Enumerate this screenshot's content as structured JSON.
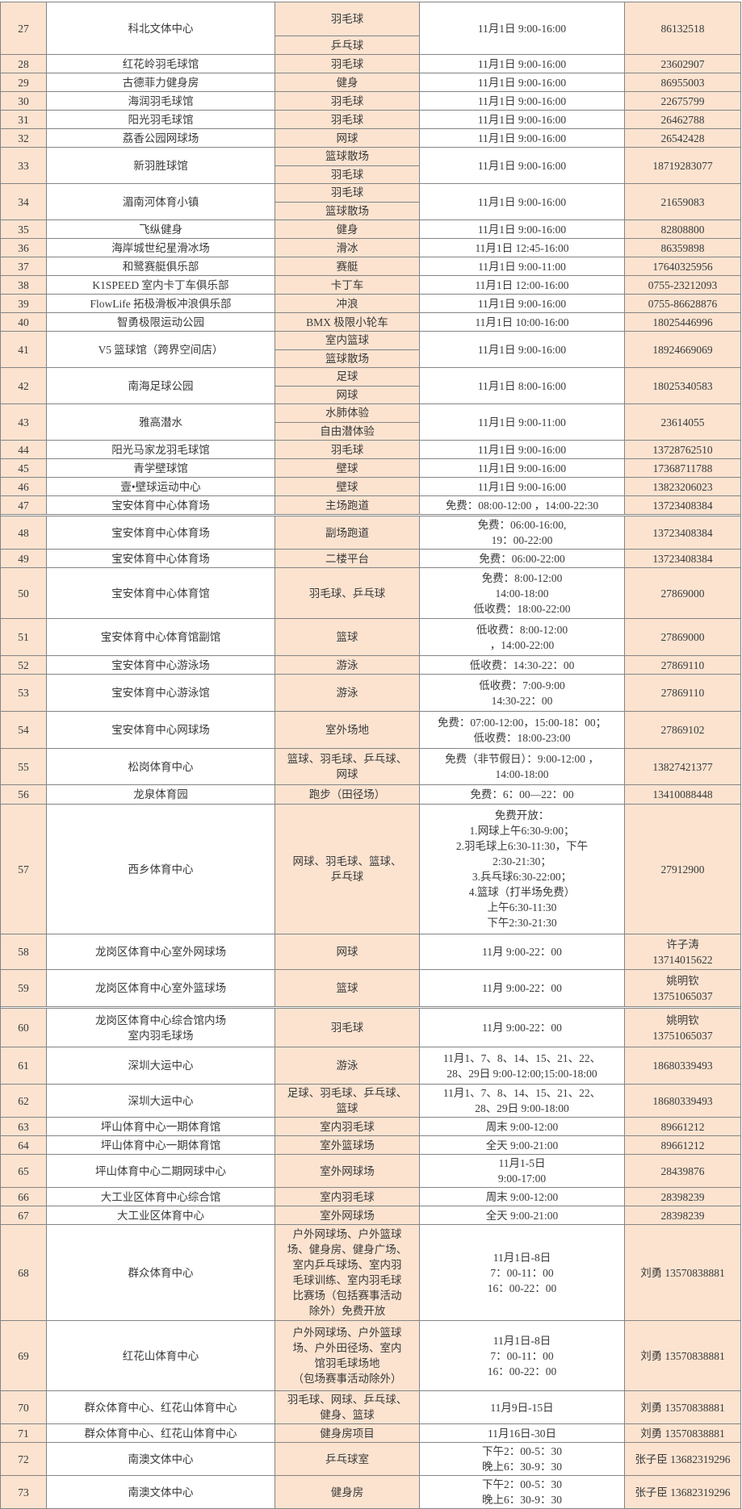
{
  "colors": {
    "cell_peach": "#fbe3d0",
    "cell_white": "#ffffff",
    "border": "#848484",
    "text": "#3a3a3a"
  },
  "rows": [
    {
      "no": "27",
      "name": "科北文体中心",
      "sports": [
        "羽毛球",
        "乒乓球"
      ],
      "time": [
        "11月1日 9:00-16:00"
      ],
      "phone": [
        "86132518"
      ]
    },
    {
      "no": "28",
      "name": "红花岭羽毛球馆",
      "sports": [
        "羽毛球"
      ],
      "time": [
        "11月1日 9:00-16:00"
      ],
      "phone": [
        "23602907"
      ]
    },
    {
      "no": "29",
      "name": "古德菲力健身房",
      "sports": [
        "健身"
      ],
      "time": [
        "11月1日 9:00-16:00"
      ],
      "phone": [
        "86955003"
      ]
    },
    {
      "no": "30",
      "name": "海润羽毛球馆",
      "sports": [
        "羽毛球"
      ],
      "time": [
        "11月1日 9:00-16:00"
      ],
      "phone": [
        "22675799"
      ]
    },
    {
      "no": "31",
      "name": "阳光羽毛球馆",
      "sports": [
        "羽毛球"
      ],
      "time": [
        "11月1日 9:00-16:00"
      ],
      "phone": [
        "26462788"
      ]
    },
    {
      "no": "32",
      "name": "荔香公园网球场",
      "sports": [
        "网球"
      ],
      "time": [
        "11月1日 9:00-16:00"
      ],
      "phone": [
        "26542428"
      ]
    },
    {
      "no": "33",
      "name": "新羽胜球馆",
      "sports": [
        "篮球散场",
        "羽毛球"
      ],
      "time": [
        "11月1日 9:00-16:00"
      ],
      "phone": [
        "18719283077"
      ]
    },
    {
      "no": "34",
      "name": "湄南河体育小镇",
      "sports": [
        "羽毛球",
        "篮球散场"
      ],
      "time": [
        "11月1日 9:00-16:00"
      ],
      "phone": [
        "21659083"
      ]
    },
    {
      "no": "35",
      "name": "飞纵健身",
      "sports": [
        "健身"
      ],
      "time": [
        "11月1日 9:00-16:00"
      ],
      "phone": [
        "82808800"
      ]
    },
    {
      "no": "36",
      "name": "海岸城世纪星滑冰场",
      "sports": [
        "滑冰"
      ],
      "time": [
        "11月1日 12:45-16:00"
      ],
      "phone": [
        "86359898"
      ]
    },
    {
      "no": "37",
      "name": "和鹭赛艇俱乐部",
      "sports": [
        "赛艇"
      ],
      "time": [
        "11月1日 9:00-11:00"
      ],
      "phone": [
        "17640325956"
      ]
    },
    {
      "no": "38",
      "name": "K1SPEED 室内卡丁车俱乐部",
      "sports": [
        "卡丁车"
      ],
      "time": [
        "11月1日 12:00-16:00"
      ],
      "phone": [
        "0755-23212093"
      ]
    },
    {
      "no": "39",
      "name": "FlowLife 拓极滑板冲浪俱乐部",
      "sports": [
        "冲浪"
      ],
      "time": [
        "11月1日 9:00-16:00"
      ],
      "phone": [
        "0755-86628876"
      ]
    },
    {
      "no": "40",
      "name": "智勇极限运动公园",
      "sports": [
        "BMX 极限小轮车"
      ],
      "time": [
        "11月1日 10:00-16:00"
      ],
      "phone": [
        "18025446996"
      ]
    },
    {
      "no": "41",
      "name": "V5 篮球馆（跨界空间店）",
      "sports": [
        "室内篮球",
        "篮球散场"
      ],
      "time": [
        "11月1日 9:00-16:00"
      ],
      "phone": [
        "18924669069"
      ]
    },
    {
      "no": "42",
      "name": "南海足球公园",
      "sports": [
        "足球",
        "网球"
      ],
      "time": [
        "11月1日 8:00-16:00"
      ],
      "phone": [
        "18025340583"
      ]
    },
    {
      "no": "43",
      "name": "雅高潜水",
      "sports": [
        "水肺体验",
        "自由潜体验"
      ],
      "time": [
        "11月1日 9:00-11:00"
      ],
      "phone": [
        "23614055"
      ]
    },
    {
      "no": "44",
      "name": "阳光马家龙羽毛球馆",
      "sports": [
        "羽毛球"
      ],
      "time": [
        "11月1日 9:00-16:00"
      ],
      "phone": [
        "13728762510"
      ]
    },
    {
      "no": "45",
      "name": "青学壁球馆",
      "sports": [
        "壁球"
      ],
      "time": [
        "11月1日 9:00-16:00"
      ],
      "phone": [
        "17368711788"
      ]
    },
    {
      "no": "46",
      "name": "壹•壁球运动中心",
      "sports": [
        "壁球"
      ],
      "time": [
        "11月1日 9:00-16:00"
      ],
      "phone": [
        "13823206023"
      ]
    },
    {
      "no": "47",
      "name": "宝安体育中心体育场",
      "sports": [
        "主场跑道"
      ],
      "time": [
        "免费：08:00-12:00 ，14:00-22:30"
      ],
      "phone": [
        "13723408384"
      ]
    },
    {
      "no": "48",
      "name": "宝安体育中心体育场",
      "sports": [
        "副场跑道"
      ],
      "time": [
        "免费：06:00-16:00,",
        "19：00-22:00"
      ],
      "phone": [
        "13723408384"
      ]
    },
    {
      "no": "49",
      "name": "宝安体育中心体育场",
      "sports": [
        "二楼平台"
      ],
      "time": [
        "免费：06:00-22:00"
      ],
      "phone": [
        "13723408384"
      ]
    },
    {
      "no": "50",
      "name": "宝安体育中心体育馆",
      "sports": [
        "羽毛球、乒乓球"
      ],
      "time": [
        "免费：8:00-12:00",
        "14:00-18:00",
        "低收费：18:00-22:00"
      ],
      "phone": [
        "27869000"
      ]
    },
    {
      "no": "51",
      "name": "宝安体育中心体育馆副馆",
      "sports": [
        "篮球"
      ],
      "time": [
        "低收费：8:00-12:00",
        "，14:00-22:00"
      ],
      "phone": [
        "27869000"
      ]
    },
    {
      "no": "52",
      "name": "宝安体育中心游泳场",
      "sports": [
        "游泳"
      ],
      "time": [
        "低收费：14:30-22：00"
      ],
      "phone": [
        "27869110"
      ]
    },
    {
      "no": "53",
      "name": "宝安体育中心游泳馆",
      "sports": [
        "游泳"
      ],
      "time": [
        "低收费：7:00-9:00",
        "14:30-22：00"
      ],
      "phone": [
        "27869110"
      ]
    },
    {
      "no": "54",
      "name": "宝安体育中心网球场",
      "sports": [
        "室外场地"
      ],
      "time": [
        "免费：07:00-12:00，15:00-18：00；",
        "低收费：18:00-23:00"
      ],
      "phone": [
        "27869102"
      ]
    },
    {
      "no": "55",
      "name": "松岗体育中心",
      "sports": [
        "篮球、羽毛球、乒乓球、\n网球"
      ],
      "time": [
        "免费（非节假日）：9:00-12:00 ，",
        "14:00-18:00"
      ],
      "phone": [
        "13827421377"
      ]
    },
    {
      "no": "56",
      "name": "龙泉体育园",
      "sports": [
        "跑步（田径场）"
      ],
      "time": [
        "免费：6：00—22：00"
      ],
      "phone": [
        "13410088448"
      ]
    },
    {
      "no": "57",
      "name": "西乡体育中心",
      "sports": [
        "网球、羽毛球、篮球、\n乒乓球"
      ],
      "time": [
        "免费开放：",
        "1.网球上午6:30-9:00；",
        "2.羽毛球上6:30-11:30，下午",
        "2:30-21:30；",
        "3.兵乓球6:30-22:00；",
        "4.篮球（打半场免费）",
        "上午6:30-11:30",
        "下午2:30-21:30"
      ],
      "phone": [
        "27912900"
      ]
    },
    {
      "no": "58",
      "name": "龙岗区体育中心室外网球场",
      "sports": [
        "网球"
      ],
      "time": [
        "11月 9:00-22：00"
      ],
      "phone": [
        "许子涛",
        "13714015622"
      ]
    },
    {
      "no": "59",
      "name": "龙岗区体育中心室外篮球场",
      "sports": [
        "篮球"
      ],
      "time": [
        "11月 9:00-22：00"
      ],
      "phone": [
        "姚明钦",
        "13751065037"
      ]
    },
    {
      "no": "60",
      "name": "龙岗区体育中心综合馆内场\n室内羽毛球场",
      "sports": [
        "羽毛球"
      ],
      "time": [
        "11月 9:00-22：00"
      ],
      "phone": [
        "姚明钦",
        "13751065037"
      ]
    },
    {
      "no": "61",
      "name": "深圳大运中心",
      "sports": [
        "游泳"
      ],
      "time": [
        "11月1、7、8、14、15、21、22、",
        "28、29日 9:00-12:00;15:00-18:00"
      ],
      "phone": [
        "18680339493"
      ]
    },
    {
      "no": "62",
      "name": "深圳大运中心",
      "sports": [
        "足球、羽毛球、乒乓球、\n篮球"
      ],
      "time": [
        "11月1、7、8、14、15、21、22、",
        "28、29日 9:00-18:00"
      ],
      "phone": [
        "18680339493"
      ]
    },
    {
      "no": "63",
      "name": "坪山体育中心一期体育馆",
      "sports": [
        "室内羽毛球"
      ],
      "time": [
        "周末 9:00-12:00"
      ],
      "phone": [
        "89661212"
      ]
    },
    {
      "no": "64",
      "name": "坪山体育中心一期体育馆",
      "sports": [
        "室外篮球场"
      ],
      "time": [
        "全天 9:00-21:00"
      ],
      "phone": [
        "89661212"
      ]
    },
    {
      "no": "65",
      "name": "坪山体育中心二期网球中心",
      "sports": [
        "室外网球场"
      ],
      "time": [
        "11月1-5日",
        "9:00-17:00"
      ],
      "phone": [
        "28439876"
      ]
    },
    {
      "no": "66",
      "name": "大工业区体育中心综合馆",
      "sports": [
        "室内羽毛球"
      ],
      "time": [
        "周末 9:00-12:00"
      ],
      "phone": [
        "28398239"
      ]
    },
    {
      "no": "67",
      "name": "大工业区体育中心",
      "sports": [
        "室外网球场"
      ],
      "time": [
        "全天 9:00-21:00"
      ],
      "phone": [
        "28398239"
      ]
    },
    {
      "no": "68",
      "name": "群众体育中心",
      "sports": [
        "户外网球场、户外篮球\n场、健身房、健身广场、\n室内乒乓球场、室内羽\n毛球训练、室内羽毛球\n比赛场（包括赛事活动\n除外）免费开放"
      ],
      "time": [
        "11月1日-8日",
        "7：00-11：00",
        "16：00-22：00"
      ],
      "phone": [
        "刘勇 13570838881"
      ]
    },
    {
      "no": "69",
      "name": "红花山体育中心",
      "sports": [
        "户外网球场、户外篮球\n场、户外田径场、室内\n馆羽毛球场地\n（包场赛事活动除外）"
      ],
      "time": [
        "11月1日-8日",
        "7：00-11：00",
        "16：00-22：00"
      ],
      "phone": [
        "刘勇 13570838881"
      ]
    },
    {
      "no": "70",
      "name": "群众体育中心、红花山体育中心",
      "sports": [
        "羽毛球、网球、乒乓球、\n健身、篮球"
      ],
      "time": [
        "11月9日-15日"
      ],
      "phone": [
        "刘勇 13570838881"
      ]
    },
    {
      "no": "71",
      "name": "群众体育中心、红花山体育中心",
      "sports": [
        "健身房项目"
      ],
      "time": [
        "11月16日-30日"
      ],
      "phone": [
        "刘勇 13570838881"
      ]
    },
    {
      "no": "72",
      "name": "南澳文体中心",
      "sports": [
        "乒乓球室"
      ],
      "time": [
        "下午2：00-5：30",
        "晚上6：30-9：30"
      ],
      "phone": [
        "张子臣 13682319296"
      ]
    },
    {
      "no": "73",
      "name": "南澳文体中心",
      "sports": [
        "健身房"
      ],
      "time": [
        "下午2：00-5：30",
        "晚上6：30-9：30"
      ],
      "phone": [
        "张子臣 13682319296"
      ]
    }
  ]
}
